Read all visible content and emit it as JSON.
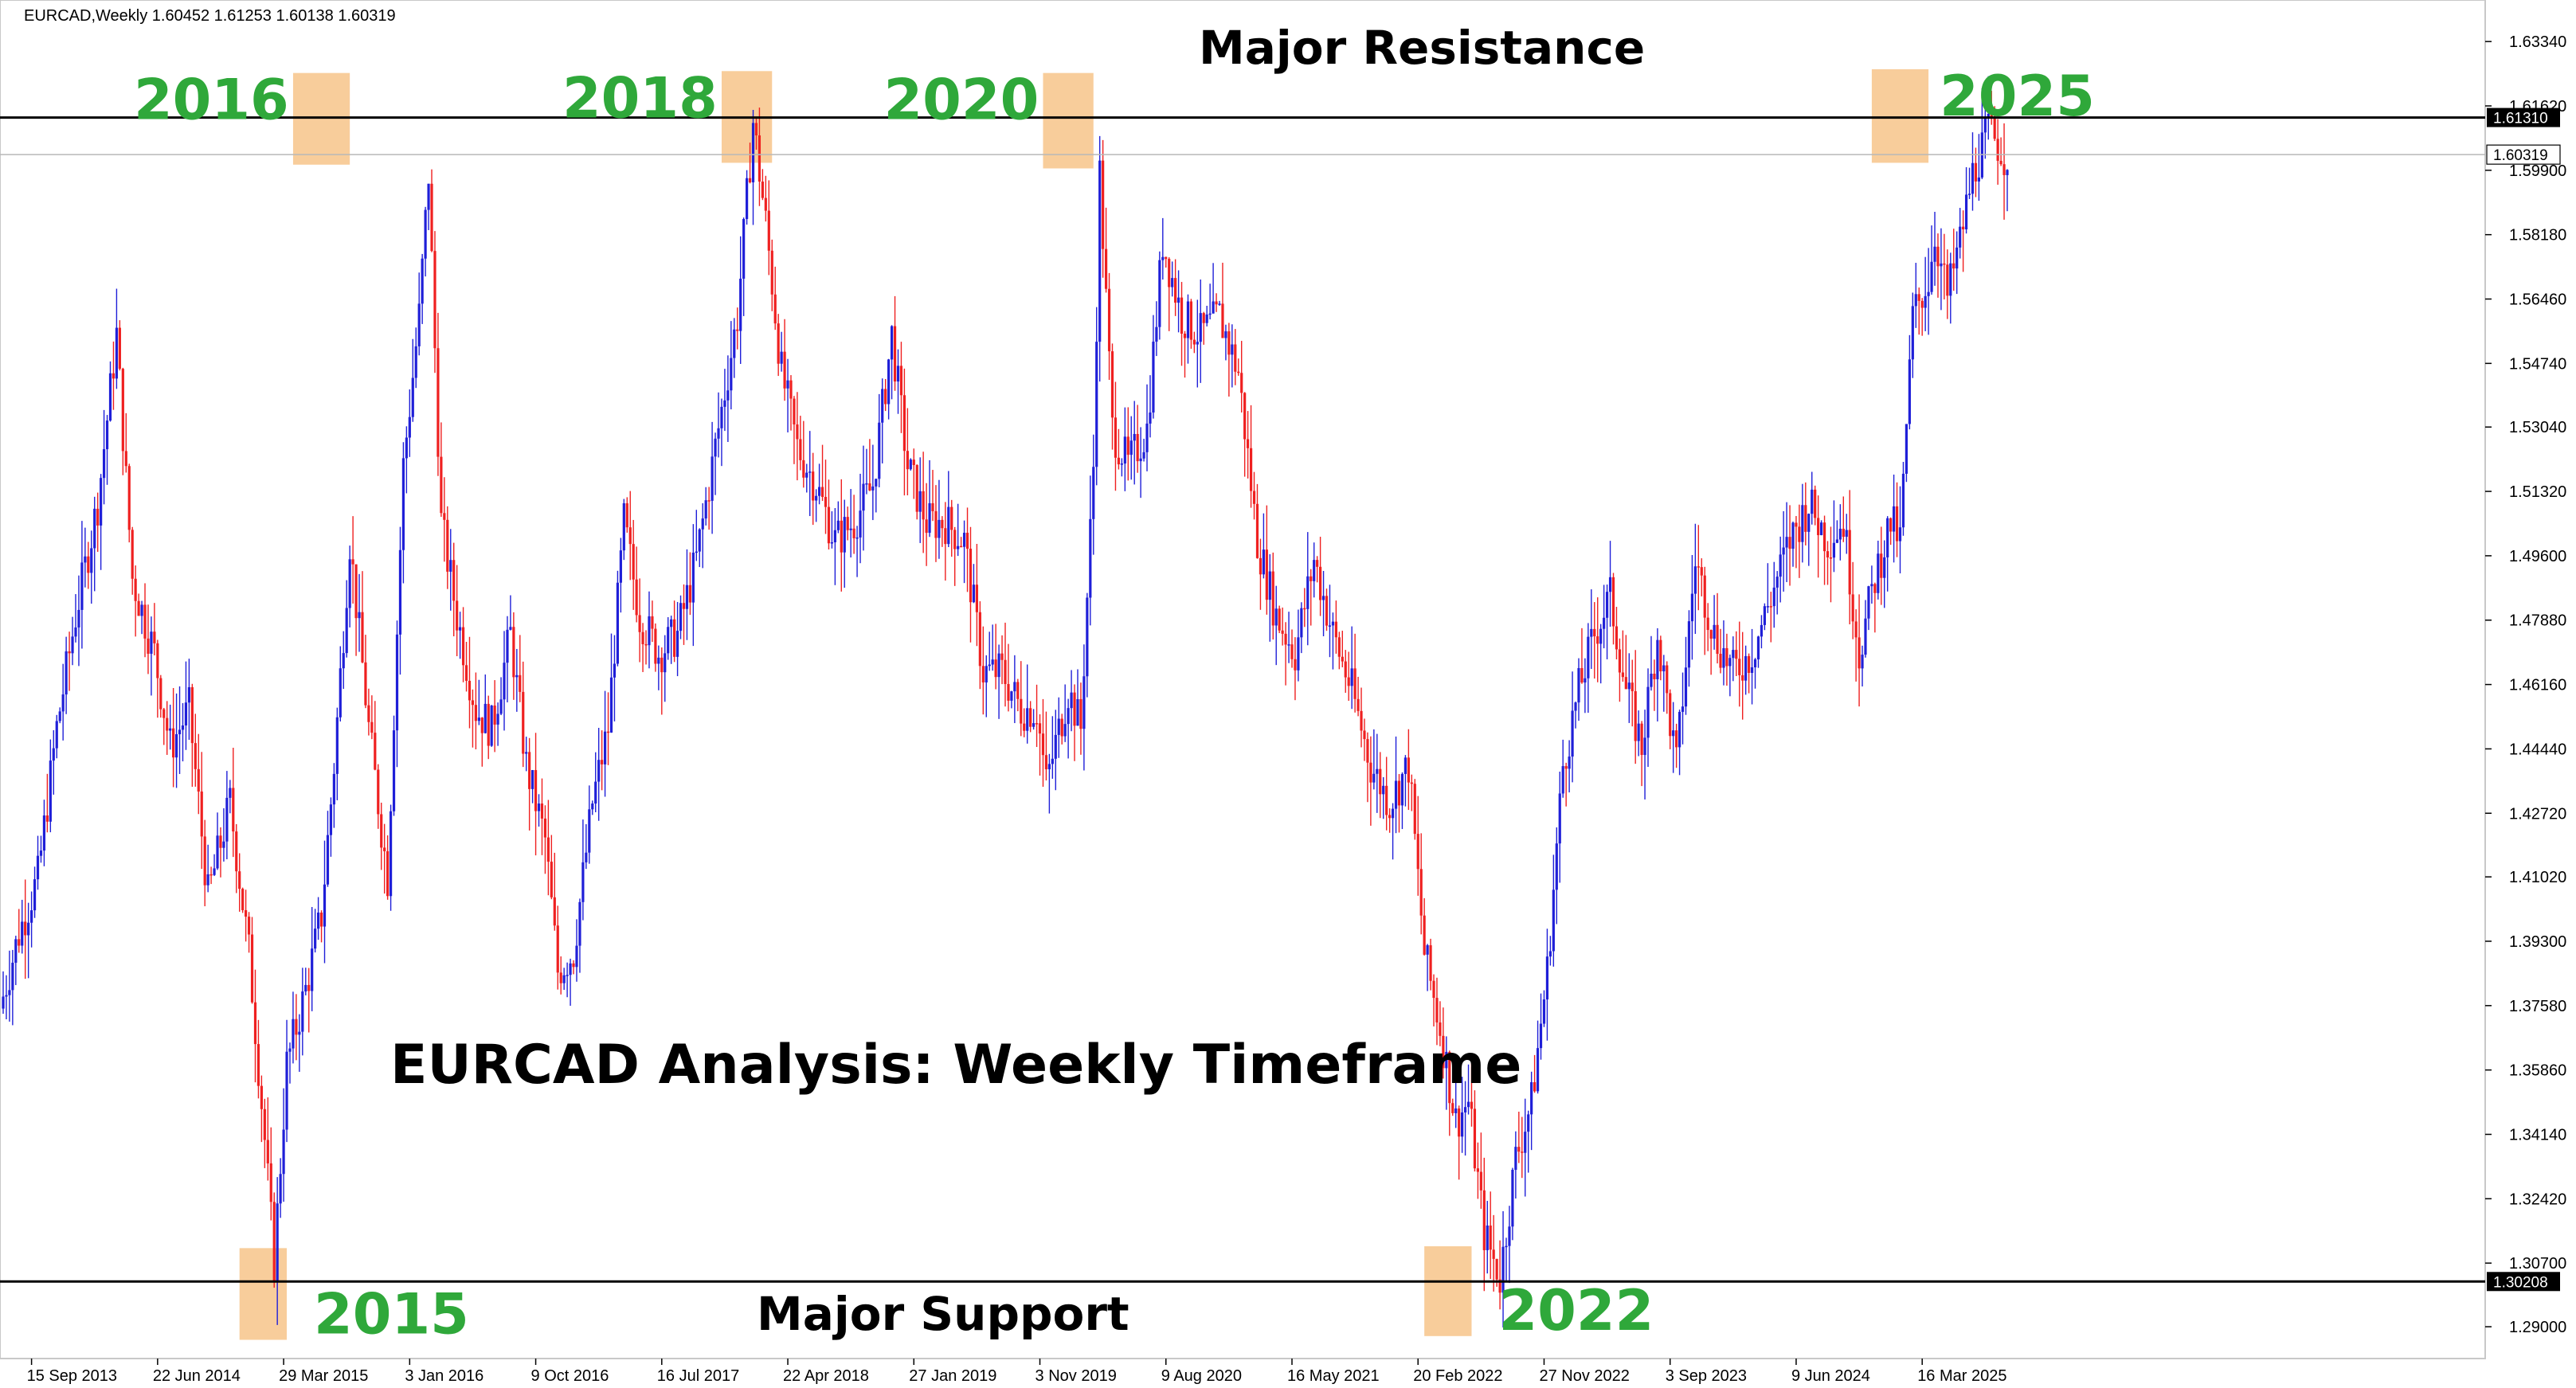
{
  "chart_data": {
    "type": "candlestick",
    "symbol": "EURCAD",
    "timeframe": "Weekly",
    "header": "EURCAD,Weekly  1.60452 1.61253 1.60138 1.60319",
    "title": "EURCAD Analysis: Weekly Timeframe",
    "ylim": [
      1.2815,
      1.6445
    ],
    "x_range": [
      "2013-07-14",
      "2025-09-21"
    ],
    "grid": false,
    "colors": {
      "up": "#1f1fd8",
      "down": "#ef2020",
      "line": "#000000",
      "highlight": "#f7c48a",
      "label": "#2fa83a"
    },
    "price_ticks": [
      "1.63340",
      "1.61620",
      "1.59900",
      "1.58180",
      "1.56460",
      "1.54740",
      "1.53040",
      "1.51320",
      "1.49600",
      "1.47880",
      "1.46160",
      "1.44440",
      "1.42720",
      "1.41020",
      "1.39300",
      "1.37580",
      "1.35860",
      "1.34140",
      "1.32420",
      "1.30700",
      "1.29000"
    ],
    "date_ticks": [
      {
        "label": "15 Sep 2013",
        "date": "2013-09-15"
      },
      {
        "label": "22 Jun 2014",
        "date": "2014-06-22"
      },
      {
        "label": "29 Mar 2015",
        "date": "2015-03-29"
      },
      {
        "label": "3 Jan 2016",
        "date": "2016-01-03"
      },
      {
        "label": "9 Oct 2016",
        "date": "2016-10-09"
      },
      {
        "label": "16 Jul 2017",
        "date": "2017-07-16"
      },
      {
        "label": "22 Apr 2018",
        "date": "2018-04-22"
      },
      {
        "label": "27 Jan 2019",
        "date": "2019-01-27"
      },
      {
        "label": "3 Nov 2019",
        "date": "2019-11-03"
      },
      {
        "label": "9 Aug 2020",
        "date": "2020-08-09"
      },
      {
        "label": "16 May 2021",
        "date": "2021-05-16"
      },
      {
        "label": "20 Feb 2022",
        "date": "2022-02-20"
      },
      {
        "label": "27 Nov 2022",
        "date": "2022-11-27"
      },
      {
        "label": "3 Sep 2023",
        "date": "2023-09-03"
      },
      {
        "label": "9 Jun 2024",
        "date": "2024-06-09"
      },
      {
        "label": "16 Mar 2025",
        "date": "2025-03-16"
      }
    ],
    "horizontal_lines": [
      {
        "name": "Major Resistance",
        "value": 1.6131,
        "tag": "1.61310"
      },
      {
        "name": "Major Support",
        "value": 1.30208,
        "tag": "1.30208"
      }
    ],
    "current_price": {
      "value": 1.60319,
      "tag": "1.60319"
    },
    "highlight_zones": [
      {
        "label": "2016",
        "date_from": "2015-04-19",
        "date_to": "2015-08-23",
        "low": 1.6005,
        "high": 1.625
      },
      {
        "label": "2018",
        "date_from": "2017-11-26",
        "date_to": "2018-03-18",
        "low": 1.601,
        "high": 1.6255
      },
      {
        "label": "2020",
        "date_from": "2019-11-10",
        "date_to": "2020-03-01",
        "low": 1.5995,
        "high": 1.625
      },
      {
        "label": "2025",
        "date_from": "2024-11-24",
        "date_to": "2025-03-30",
        "low": 1.601,
        "high": 1.626
      },
      {
        "label": "2015",
        "date_from": "2014-12-21",
        "date_to": "2015-04-05",
        "low": 1.2865,
        "high": 1.311
      },
      {
        "label": "2022",
        "date_from": "2022-03-06",
        "date_to": "2022-06-19",
        "low": 1.2875,
        "high": 1.3115
      }
    ],
    "annotations": [
      {
        "text": "Major Resistance",
        "kind": "line-label"
      },
      {
        "text": "Major Support",
        "kind": "line-label"
      }
    ],
    "price_path": [
      [
        "2013-07-14",
        1.375
      ],
      [
        "2013-08-25",
        1.395
      ],
      [
        "2013-10-06",
        1.41
      ],
      [
        "2013-11-17",
        1.45
      ],
      [
        "2013-12-29",
        1.48
      ],
      [
        "2014-02-16",
        1.51
      ],
      [
        "2014-03-30",
        1.555
      ],
      [
        "2014-05-04",
        1.49
      ],
      [
        "2014-06-22",
        1.47
      ],
      [
        "2014-07-27",
        1.445
      ],
      [
        "2014-09-07",
        1.455
      ],
      [
        "2014-10-19",
        1.405
      ],
      [
        "2014-12-07",
        1.43
      ],
      [
        "2015-01-18",
        1.39
      ],
      [
        "2015-02-22",
        1.34
      ],
      [
        "2015-03-15",
        1.307
      ],
      [
        "2015-04-12",
        1.36
      ],
      [
        "2015-05-24",
        1.38
      ],
      [
        "2015-06-28",
        1.4
      ],
      [
        "2015-07-26",
        1.44
      ],
      [
        "2015-08-30",
        1.5
      ],
      [
        "2015-10-11",
        1.45
      ],
      [
        "2015-11-22",
        1.41
      ],
      [
        "2015-12-27",
        1.52
      ],
      [
        "2016-01-31",
        1.56
      ],
      [
        "2016-02-21",
        1.598
      ],
      [
        "2016-03-20",
        1.505
      ],
      [
        "2016-04-24",
        1.48
      ],
      [
        "2016-06-05",
        1.455
      ],
      [
        "2016-07-10",
        1.45
      ],
      [
        "2016-08-21",
        1.475
      ],
      [
        "2016-09-25",
        1.44
      ],
      [
        "2016-11-06",
        1.42
      ],
      [
        "2016-12-04",
        1.385
      ],
      [
        "2017-01-08",
        1.39
      ],
      [
        "2017-02-19",
        1.43
      ],
      [
        "2017-03-26",
        1.45
      ],
      [
        "2017-04-30",
        1.505
      ],
      [
        "2017-06-04",
        1.48
      ],
      [
        "2017-07-16",
        1.47
      ],
      [
        "2017-08-27",
        1.475
      ],
      [
        "2017-10-08",
        1.495
      ],
      [
        "2017-11-19",
        1.525
      ],
      [
        "2018-01-07",
        1.56
      ],
      [
        "2018-02-11",
        1.612
      ],
      [
        "2018-03-11",
        1.585
      ],
      [
        "2018-04-15",
        1.545
      ],
      [
        "2018-05-20",
        1.525
      ],
      [
        "2018-07-01",
        1.515
      ],
      [
        "2018-08-12",
        1.5
      ],
      [
        "2018-09-23",
        1.505
      ],
      [
        "2018-11-04",
        1.515
      ],
      [
        "2018-12-16",
        1.555
      ],
      [
        "2019-01-20",
        1.52
      ],
      [
        "2019-03-03",
        1.505
      ],
      [
        "2019-04-14",
        1.505
      ],
      [
        "2019-05-26",
        1.5
      ],
      [
        "2019-07-07",
        1.465
      ],
      [
        "2019-08-18",
        1.465
      ],
      [
        "2019-09-29",
        1.455
      ],
      [
        "2019-11-03",
        1.455
      ],
      [
        "2019-11-24",
        1.435
      ],
      [
        "2020-01-12",
        1.46
      ],
      [
        "2020-02-09",
        1.45
      ],
      [
        "2020-03-08",
        1.52
      ],
      [
        "2020-03-22",
        1.598
      ],
      [
        "2020-04-19",
        1.53
      ],
      [
        "2020-05-24",
        1.52
      ],
      [
        "2020-07-05",
        1.53
      ],
      [
        "2020-08-09",
        1.58
      ],
      [
        "2020-09-20",
        1.56
      ],
      [
        "2020-11-01",
        1.555
      ],
      [
        "2020-12-13",
        1.56
      ],
      [
        "2021-01-24",
        1.545
      ],
      [
        "2021-03-07",
        1.5
      ],
      [
        "2021-04-18",
        1.48
      ],
      [
        "2021-05-30",
        1.47
      ],
      [
        "2021-07-11",
        1.495
      ],
      [
        "2021-08-22",
        1.475
      ],
      [
        "2021-10-03",
        1.46
      ],
      [
        "2021-11-14",
        1.44
      ],
      [
        "2021-12-26",
        1.43
      ],
      [
        "2022-02-06",
        1.44
      ],
      [
        "2022-03-13",
        1.39
      ],
      [
        "2022-04-17",
        1.37
      ],
      [
        "2022-05-22",
        1.345
      ],
      [
        "2022-06-19",
        1.35
      ],
      [
        "2022-07-24",
        1.315
      ],
      [
        "2022-08-28",
        1.303
      ],
      [
        "2022-10-02",
        1.335
      ],
      [
        "2022-11-06",
        1.35
      ],
      [
        "2022-12-11",
        1.385
      ],
      [
        "2023-01-15",
        1.44
      ],
      [
        "2023-02-19",
        1.46
      ],
      [
        "2023-03-26",
        1.475
      ],
      [
        "2023-04-30",
        1.485
      ],
      [
        "2023-06-04",
        1.46
      ],
      [
        "2023-07-09",
        1.445
      ],
      [
        "2023-08-13",
        1.475
      ],
      [
        "2023-09-24",
        1.44
      ],
      [
        "2023-11-05",
        1.495
      ],
      [
        "2023-12-17",
        1.475
      ],
      [
        "2024-01-28",
        1.465
      ],
      [
        "2024-03-10",
        1.47
      ],
      [
        "2024-04-21",
        1.485
      ],
      [
        "2024-06-02",
        1.5
      ],
      [
        "2024-07-14",
        1.51
      ],
      [
        "2024-08-25",
        1.5
      ],
      [
        "2024-09-29",
        1.505
      ],
      [
        "2024-11-03",
        1.47
      ],
      [
        "2024-12-08",
        1.49
      ],
      [
        "2025-01-12",
        1.505
      ],
      [
        "2025-02-02",
        1.5
      ],
      [
        "2025-03-02",
        1.56
      ],
      [
        "2025-04-06",
        1.57
      ],
      [
        "2025-04-20",
        1.582
      ],
      [
        "2025-05-18",
        1.565
      ],
      [
        "2025-06-15",
        1.58
      ],
      [
        "2025-07-13",
        1.598
      ],
      [
        "2025-08-17",
        1.61
      ],
      [
        "2025-09-21",
        1.6032
      ]
    ]
  }
}
